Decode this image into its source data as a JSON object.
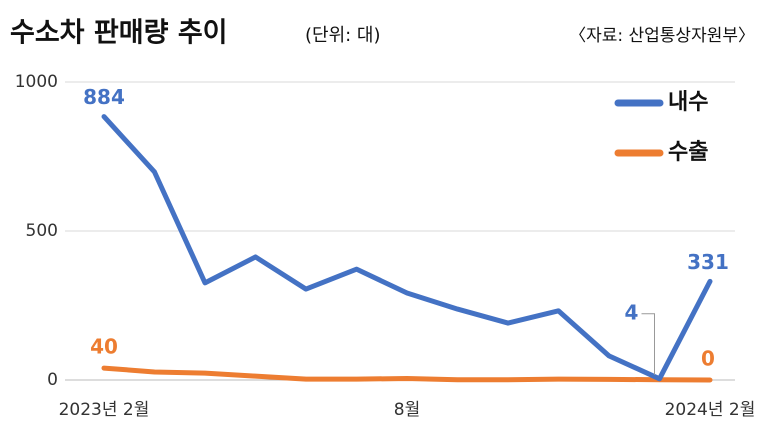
{
  "chart_data": {
    "type": "line",
    "title": "수소차 판매량 추이",
    "subtitle": "(단위: 대)",
    "source": "〈자료: 산업통상자원부〉",
    "categories": [
      "2023년 2월",
      null,
      null,
      null,
      null,
      null,
      "8월",
      null,
      null,
      null,
      null,
      null,
      "2024년 2월"
    ],
    "series": [
      {
        "name": "내수",
        "color": "#4472c4",
        "values": [
          884,
          698,
          326,
          413,
          305,
          372,
          292,
          238,
          191,
          232,
          81,
          4,
          331
        ]
      },
      {
        "name": "수출",
        "color": "#ed7d31",
        "values": [
          40,
          27,
          23,
          13,
          3,
          3,
          5,
          1,
          1,
          3,
          2,
          1,
          0
        ]
      }
    ],
    "ylim": [
      0,
      1000
    ],
    "yticks": [
      0,
      500,
      1000
    ],
    "grid": true,
    "legend": "top-right"
  }
}
